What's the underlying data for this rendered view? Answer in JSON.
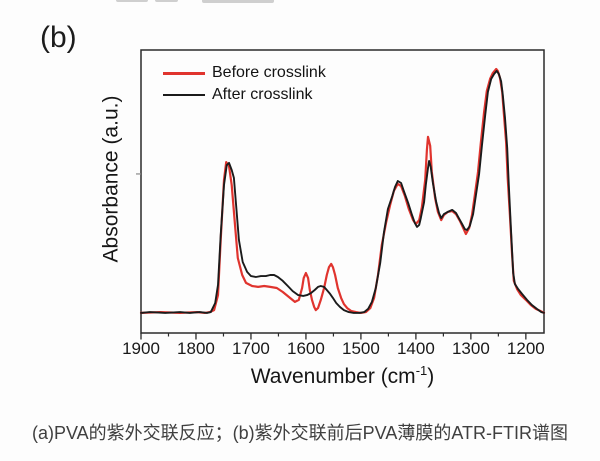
{
  "panel_label": "(b)",
  "caption": "(a)PVA的紫外交联反应；(b)紫外交联前后PVA薄膜的ATR-FTIR谱图",
  "colors": {
    "before_crosslink": "#e0342e",
    "after_crosslink": "#1b1b1b",
    "frame": "#2b2b2b",
    "tick_text": "#191919"
  },
  "chart_data": {
    "type": "line",
    "title": "",
    "xlabel": {
      "base": "Wavenumber (cm",
      "sup": "-1",
      "suffix": ")"
    },
    "ylabel": "Absorbance (a.u.)",
    "x_range": [
      1900,
      1167
    ],
    "x_ticks": [
      1900,
      1800,
      1700,
      1600,
      1500,
      1400,
      1300,
      1200
    ],
    "x_axis_reversed": true,
    "y_unit": "arbitrary (a.u.), 0 = bottom axis, 1 = top axis",
    "y_tick_fracs": [
      0.562
    ],
    "grid": false,
    "legend_position": "top-left inside",
    "legend": [
      {
        "label": "Before crosslink",
        "color": "#e0342e",
        "swatch_thickness": 3
      },
      {
        "label": "After crosslink",
        "color": "#1b1b1b",
        "swatch_thickness": 2
      }
    ],
    "series": [
      {
        "name": "Before crosslink",
        "color": "#e0342e",
        "stroke_width": 2.2,
        "points": [
          [
            1900,
            0.071
          ],
          [
            1865,
            0.074
          ],
          [
            1829,
            0.071
          ],
          [
            1798,
            0.074
          ],
          [
            1784,
            0.071
          ],
          [
            1775,
            0.074
          ],
          [
            1767,
            0.081
          ],
          [
            1760,
            0.134
          ],
          [
            1755,
            0.329
          ],
          [
            1749,
            0.541
          ],
          [
            1745,
            0.604
          ],
          [
            1740,
            0.59
          ],
          [
            1735,
            0.523
          ],
          [
            1729,
            0.382
          ],
          [
            1724,
            0.265
          ],
          [
            1716,
            0.205
          ],
          [
            1709,
            0.177
          ],
          [
            1698,
            0.166
          ],
          [
            1687,
            0.163
          ],
          [
            1676,
            0.166
          ],
          [
            1665,
            0.163
          ],
          [
            1653,
            0.159
          ],
          [
            1642,
            0.145
          ],
          [
            1629,
            0.124
          ],
          [
            1620,
            0.11
          ],
          [
            1613,
            0.117
          ],
          [
            1607,
            0.159
          ],
          [
            1604,
            0.194
          ],
          [
            1600,
            0.212
          ],
          [
            1596,
            0.194
          ],
          [
            1593,
            0.152
          ],
          [
            1589,
            0.117
          ],
          [
            1585,
            0.092
          ],
          [
            1582,
            0.081
          ],
          [
            1578,
            0.088
          ],
          [
            1573,
            0.117
          ],
          [
            1567,
            0.159
          ],
          [
            1562,
            0.205
          ],
          [
            1558,
            0.233
          ],
          [
            1554,
            0.244
          ],
          [
            1551,
            0.233
          ],
          [
            1547,
            0.205
          ],
          [
            1542,
            0.159
          ],
          [
            1536,
            0.124
          ],
          [
            1531,
            0.102
          ],
          [
            1525,
            0.088
          ],
          [
            1518,
            0.078
          ],
          [
            1509,
            0.074
          ],
          [
            1500,
            0.071
          ],
          [
            1491,
            0.074
          ],
          [
            1483,
            0.088
          ],
          [
            1476,
            0.124
          ],
          [
            1469,
            0.205
          ],
          [
            1462,
            0.311
          ],
          [
            1454,
            0.392
          ],
          [
            1447,
            0.452
          ],
          [
            1440,
            0.502
          ],
          [
            1433,
            0.527
          ],
          [
            1427,
            0.519
          ],
          [
            1420,
            0.484
          ],
          [
            1413,
            0.438
          ],
          [
            1405,
            0.399
          ],
          [
            1400,
            0.385
          ],
          [
            1394,
            0.399
          ],
          [
            1389,
            0.445
          ],
          [
            1383,
            0.541
          ],
          [
            1380,
            0.647
          ],
          [
            1378,
            0.693
          ],
          [
            1374,
            0.661
          ],
          [
            1371,
            0.569
          ],
          [
            1365,
            0.477
          ],
          [
            1360,
            0.428
          ],
          [
            1354,
            0.399
          ],
          [
            1349,
            0.417
          ],
          [
            1342,
            0.428
          ],
          [
            1334,
            0.431
          ],
          [
            1327,
            0.42
          ],
          [
            1320,
            0.396
          ],
          [
            1314,
            0.371
          ],
          [
            1309,
            0.35
          ],
          [
            1303,
            0.371
          ],
          [
            1298,
            0.417
          ],
          [
            1293,
            0.484
          ],
          [
            1287,
            0.569
          ],
          [
            1282,
            0.671
          ],
          [
            1276,
            0.781
          ],
          [
            1271,
            0.855
          ],
          [
            1265,
            0.898
          ],
          [
            1260,
            0.919
          ],
          [
            1254,
            0.933
          ],
          [
            1251,
            0.926
          ],
          [
            1247,
            0.901
          ],
          [
            1243,
            0.852
          ],
          [
            1240,
            0.774
          ],
          [
            1236,
            0.675
          ],
          [
            1233,
            0.548
          ],
          [
            1229,
            0.417
          ],
          [
            1225,
            0.276
          ],
          [
            1222,
            0.184
          ],
          [
            1216,
            0.155
          ],
          [
            1209,
            0.134
          ],
          [
            1200,
            0.117
          ],
          [
            1191,
            0.099
          ],
          [
            1182,
            0.085
          ],
          [
            1174,
            0.078
          ],
          [
            1167,
            0.071
          ]
        ]
      },
      {
        "name": "After crosslink",
        "color": "#1b1b1b",
        "stroke_width": 1.9,
        "points": [
          [
            1900,
            0.071
          ],
          [
            1884,
            0.074
          ],
          [
            1856,
            0.071
          ],
          [
            1829,
            0.074
          ],
          [
            1811,
            0.071
          ],
          [
            1793,
            0.074
          ],
          [
            1780,
            0.071
          ],
          [
            1773,
            0.074
          ],
          [
            1765,
            0.106
          ],
          [
            1760,
            0.17
          ],
          [
            1755,
            0.346
          ],
          [
            1749,
            0.523
          ],
          [
            1744,
            0.594
          ],
          [
            1740,
            0.601
          ],
          [
            1735,
            0.576
          ],
          [
            1731,
            0.548
          ],
          [
            1727,
            0.452
          ],
          [
            1722,
            0.329
          ],
          [
            1715,
            0.251
          ],
          [
            1707,
            0.216
          ],
          [
            1700,
            0.201
          ],
          [
            1691,
            0.198
          ],
          [
            1682,
            0.201
          ],
          [
            1673,
            0.201
          ],
          [
            1665,
            0.205
          ],
          [
            1658,
            0.205
          ],
          [
            1651,
            0.198
          ],
          [
            1642,
            0.184
          ],
          [
            1633,
            0.166
          ],
          [
            1624,
            0.148
          ],
          [
            1614,
            0.134
          ],
          [
            1605,
            0.131
          ],
          [
            1598,
            0.134
          ],
          [
            1591,
            0.141
          ],
          [
            1584,
            0.152
          ],
          [
            1578,
            0.163
          ],
          [
            1573,
            0.166
          ],
          [
            1567,
            0.163
          ],
          [
            1562,
            0.152
          ],
          [
            1556,
            0.138
          ],
          [
            1551,
            0.124
          ],
          [
            1545,
            0.106
          ],
          [
            1538,
            0.092
          ],
          [
            1531,
            0.081
          ],
          [
            1522,
            0.074
          ],
          [
            1513,
            0.071
          ],
          [
            1503,
            0.071
          ],
          [
            1494,
            0.074
          ],
          [
            1487,
            0.085
          ],
          [
            1480,
            0.11
          ],
          [
            1473,
            0.159
          ],
          [
            1465,
            0.247
          ],
          [
            1458,
            0.357
          ],
          [
            1451,
            0.438
          ],
          [
            1443,
            0.484
          ],
          [
            1438,
            0.516
          ],
          [
            1433,
            0.537
          ],
          [
            1427,
            0.53
          ],
          [
            1422,
            0.502
          ],
          [
            1414,
            0.459
          ],
          [
            1407,
            0.417
          ],
          [
            1402,
            0.389
          ],
          [
            1398,
            0.375
          ],
          [
            1394,
            0.382
          ],
          [
            1391,
            0.406
          ],
          [
            1385,
            0.463
          ],
          [
            1382,
            0.523
          ],
          [
            1378,
            0.583
          ],
          [
            1376,
            0.608
          ],
          [
            1373,
            0.587
          ],
          [
            1369,
            0.53
          ],
          [
            1363,
            0.463
          ],
          [
            1358,
            0.424
          ],
          [
            1354,
            0.406
          ],
          [
            1349,
            0.42
          ],
          [
            1342,
            0.428
          ],
          [
            1334,
            0.435
          ],
          [
            1327,
            0.424
          ],
          [
            1322,
            0.406
          ],
          [
            1316,
            0.385
          ],
          [
            1311,
            0.367
          ],
          [
            1307,
            0.364
          ],
          [
            1302,
            0.378
          ],
          [
            1296,
            0.42
          ],
          [
            1291,
            0.484
          ],
          [
            1285,
            0.562
          ],
          [
            1280,
            0.661
          ],
          [
            1274,
            0.77
          ],
          [
            1269,
            0.852
          ],
          [
            1263,
            0.898
          ],
          [
            1258,
            0.915
          ],
          [
            1253,
            0.926
          ],
          [
            1249,
            0.915
          ],
          [
            1245,
            0.89
          ],
          [
            1242,
            0.841
          ],
          [
            1238,
            0.76
          ],
          [
            1234,
            0.654
          ],
          [
            1231,
            0.523
          ],
          [
            1227,
            0.364
          ],
          [
            1223,
            0.212
          ],
          [
            1220,
            0.173
          ],
          [
            1214,
            0.155
          ],
          [
            1207,
            0.138
          ],
          [
            1198,
            0.117
          ],
          [
            1189,
            0.099
          ],
          [
            1180,
            0.085
          ],
          [
            1172,
            0.074
          ],
          [
            1167,
            0.071
          ]
        ]
      }
    ]
  }
}
